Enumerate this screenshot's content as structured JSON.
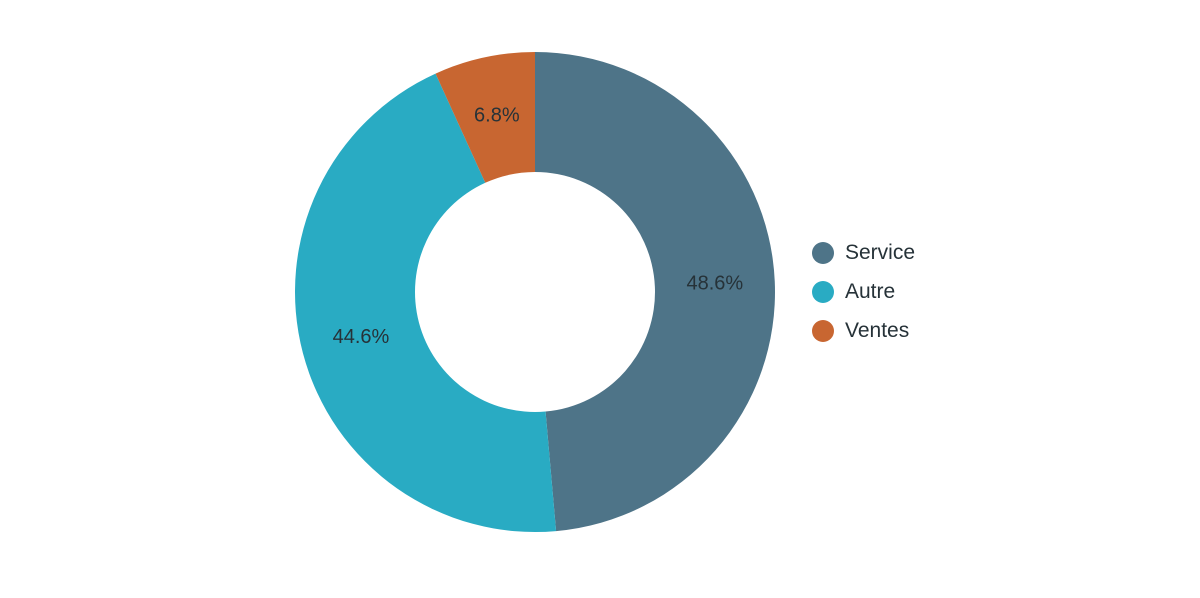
{
  "chart_data": {
    "type": "pie",
    "variant": "donut",
    "title": "",
    "slices": [
      {
        "name": "Service",
        "value": 48.6,
        "label": "48.6%",
        "color": "#4e7488"
      },
      {
        "name": "Autre",
        "value": 44.6,
        "label": "44.6%",
        "color": "#29abc3"
      },
      {
        "name": "Ventes",
        "value": 6.8,
        "label": "6.8%",
        "color": "#c86631"
      }
    ],
    "legend_position": "right"
  },
  "legend": {
    "items": [
      {
        "label": "Service",
        "color": "#4e7488"
      },
      {
        "label": "Autre",
        "color": "#29abc3"
      },
      {
        "label": "Ventes",
        "color": "#c86631"
      }
    ]
  }
}
